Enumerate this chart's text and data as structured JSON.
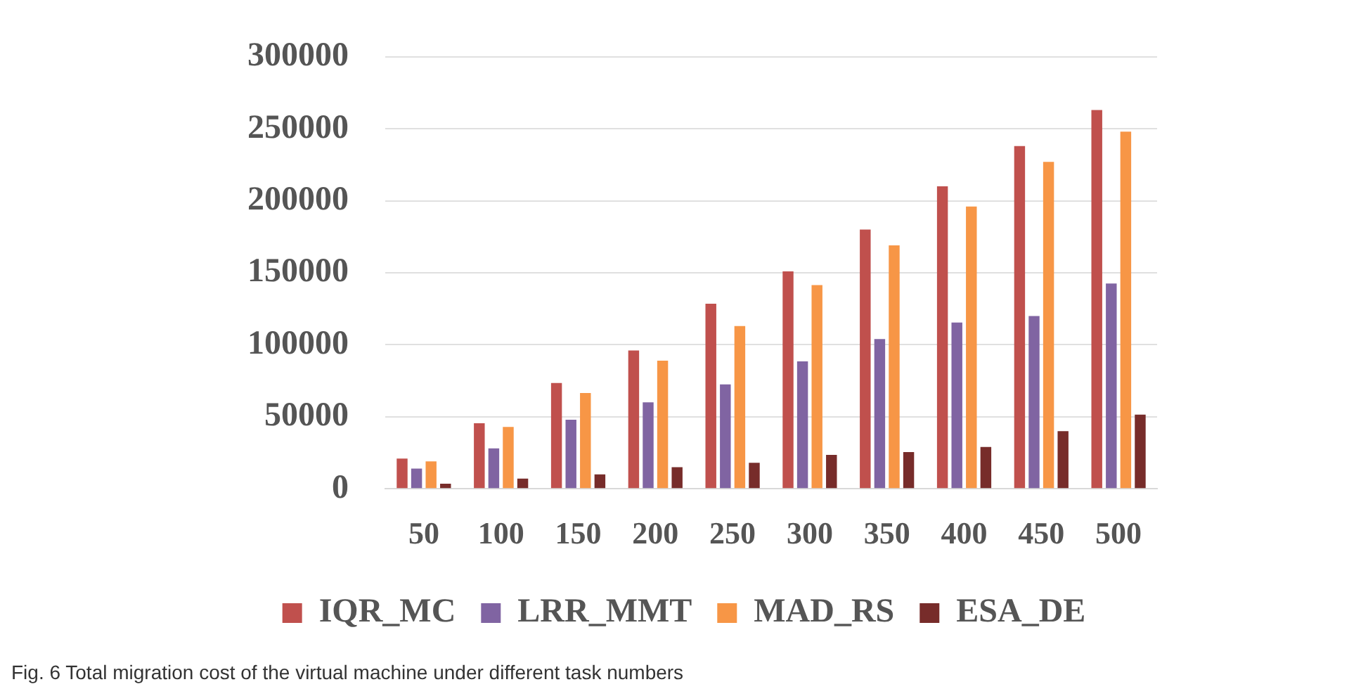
{
  "chart_data": {
    "type": "bar",
    "categories": [
      "50",
      "100",
      "150",
      "200",
      "250",
      "300",
      "350",
      "400",
      "450",
      "500"
    ],
    "series": [
      {
        "name": "IQR_MC",
        "color": "#c0504d",
        "values": [
          21000,
          45500,
          73500,
          96000,
          128500,
          151000,
          180000,
          210000,
          238000,
          263000
        ]
      },
      {
        "name": "LRR_MMT",
        "color": "#8064a2",
        "values": [
          14000,
          28000,
          48000,
          60000,
          72500,
          88500,
          104000,
          115500,
          120000,
          142500
        ]
      },
      {
        "name": "MAD_RS",
        "color": "#f79646",
        "values": [
          19000,
          43000,
          66500,
          89000,
          113000,
          141500,
          169000,
          196000,
          227000,
          248000
        ]
      },
      {
        "name": "ESA_DE",
        "color": "#772c2a",
        "values": [
          3500,
          7000,
          10000,
          15000,
          18000,
          23500,
          25500,
          29000,
          40000,
          51500
        ]
      }
    ],
    "ylim": [
      0,
      300000
    ],
    "yticks": [
      0,
      50000,
      100000,
      150000,
      200000,
      250000,
      300000
    ],
    "grid": "y",
    "legend": "bottom",
    "annotations": [
      "Fig. 6 Total migration cost of the virtual machine under different task numbers"
    ]
  }
}
